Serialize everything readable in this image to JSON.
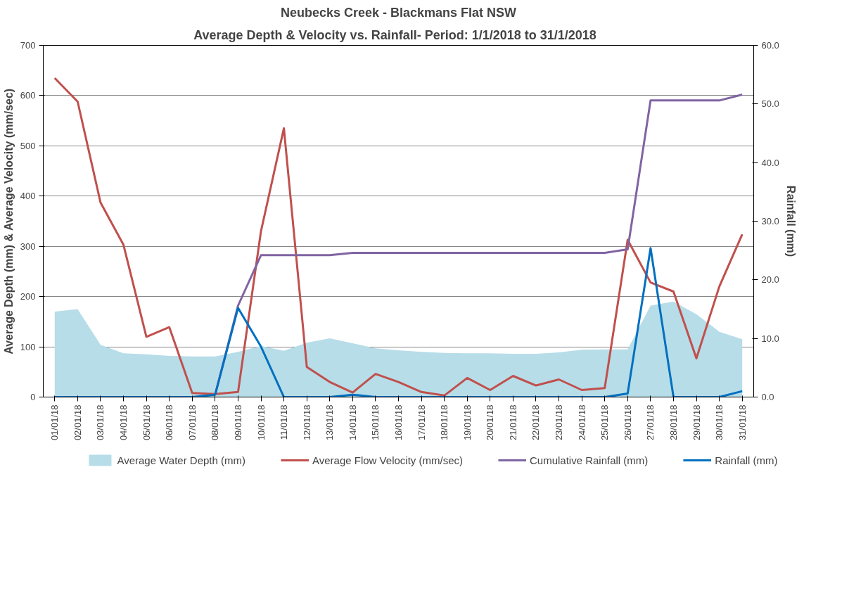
{
  "chart_data": {
    "type": "line",
    "title": "Neubecks Creek - Blackmans Flat NSW",
    "subtitle": "Average Depth & Velocity  vs. Rainfall- Period:  1/1/2018 to 31/1/2018",
    "ylabel": "Average Depth (mm) & Average Velocity (mm/sec)",
    "y2label": "Rainfall (mm)",
    "categories": [
      "01/01/18",
      "02/01/18",
      "03/01/18",
      "04/01/18",
      "05/01/18",
      "06/01/18",
      "07/01/18",
      "08/01/18",
      "09/01/18",
      "10/01/18",
      "11/01/18",
      "12/01/18",
      "13/01/18",
      "14/01/18",
      "15/01/18",
      "16/01/18",
      "17/01/18",
      "18/01/18",
      "19/01/18",
      "20/01/18",
      "21/01/18",
      "22/01/18",
      "23/01/18",
      "24/01/18",
      "25/01/18",
      "26/01/18",
      "27/01/18",
      "28/01/18",
      "29/01/18",
      "30/01/18",
      "31/01/18"
    ],
    "series": [
      {
        "name": "Average Water Depth (mm)",
        "type": "area",
        "color": "#b7dde8",
        "values": [
          170,
          175,
          104,
          87,
          85,
          82,
          81,
          81,
          90,
          102,
          92,
          108,
          117,
          107,
          97,
          93,
          90,
          88,
          87,
          87,
          86,
          86,
          89,
          94,
          95,
          95,
          182,
          190,
          165,
          130,
          115
        ]
      },
      {
        "name": "Average Flow Velocity (mm/sec)",
        "color": "#c0504d",
        "values": [
          635,
          588,
          387,
          303,
          120,
          139,
          8,
          6,
          10,
          330,
          535,
          60,
          30,
          9,
          46,
          30,
          10,
          3,
          38,
          14,
          42,
          23,
          35,
          14,
          18,
          313,
          228,
          210,
          77,
          220,
          324
        ]
      },
      {
        "name": "Cumulative Rainfall (mm)",
        "type": "line",
        "axis": "y2",
        "color": "#8064a2",
        "values": [
          null,
          null,
          null,
          null,
          null,
          null,
          null,
          0.4,
          15.6,
          24.2,
          24.2,
          24.2,
          24.2,
          24.6,
          24.6,
          24.6,
          24.6,
          24.6,
          24.6,
          24.6,
          24.6,
          24.6,
          24.6,
          24.6,
          24.6,
          25.2,
          50.6,
          50.6,
          50.6,
          50.6,
          51.6
        ]
      },
      {
        "name": "Rainfall (mm)",
        "type": "line",
        "axis": "y2",
        "color": "#0070c0",
        "values": [
          0,
          0,
          0,
          0,
          0,
          0,
          0,
          0.4,
          15.2,
          8.6,
          0,
          0,
          0,
          0.4,
          0,
          0,
          0,
          0,
          0,
          0,
          0,
          0,
          0,
          0,
          0,
          0.6,
          25.4,
          0,
          0,
          0,
          1.0
        ]
      }
    ],
    "ylim": [
      0,
      700
    ],
    "yticks": [
      0,
      100,
      200,
      300,
      400,
      500,
      600,
      700
    ],
    "y2lim": [
      0,
      60
    ],
    "y2ticks": [
      {
        "value": 0,
        "label": "0.0"
      },
      {
        "value": 10,
        "label": "10.0"
      },
      {
        "value": 20,
        "label": "20.0"
      },
      {
        "value": 30,
        "label": "30.0"
      },
      {
        "value": 40,
        "label": "40.0"
      },
      {
        "value": 50,
        "label": "50.0"
      },
      {
        "value": 60,
        "label": "60.0"
      }
    ],
    "grid": "y",
    "legend": "bottom",
    "marker": "none",
    "line_style": "solid"
  }
}
